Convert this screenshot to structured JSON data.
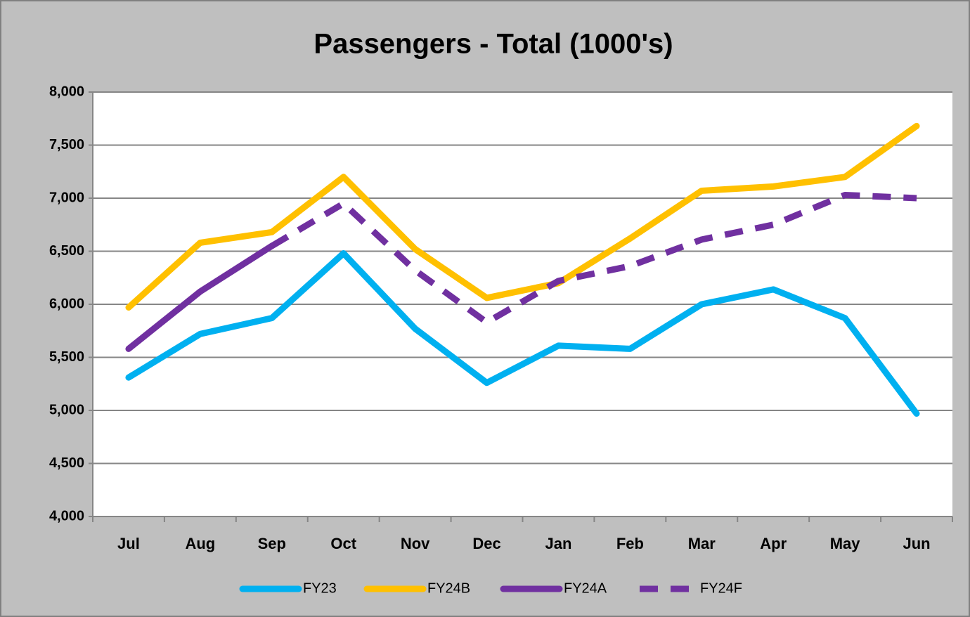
{
  "chart_data": {
    "type": "line",
    "title": "Passengers - Total (1000's)",
    "categories": [
      "Jul",
      "Aug",
      "Sep",
      "Oct",
      "Nov",
      "Dec",
      "Jan",
      "Feb",
      "Mar",
      "Apr",
      "May",
      "Jun"
    ],
    "series": [
      {
        "name": "FY23",
        "color": "#00b0f0",
        "values": [
          5310,
          5720,
          5870,
          6480,
          5770,
          5260,
          5610,
          5580,
          6000,
          6140,
          5870,
          4970
        ]
      },
      {
        "name": "FY24B",
        "color": "#ffc000",
        "values": [
          5970,
          6580,
          6680,
          7200,
          6520,
          6060,
          6200,
          6620,
          7070,
          7110,
          7200,
          7680
        ]
      },
      {
        "name": "FY24A",
        "color": "#7030a0",
        "values": [
          5580,
          6120,
          6550,
          null,
          null,
          null,
          null,
          null,
          null,
          null,
          null,
          null
        ]
      },
      {
        "name": "FY24F",
        "color": "#7030a0",
        "dashed": true,
        "values": [
          null,
          null,
          6550,
          6950,
          6320,
          5830,
          6220,
          6360,
          6610,
          6750,
          7030,
          7000
        ]
      }
    ],
    "ylim": [
      4000,
      8000
    ],
    "yticks": [
      {
        "value": 4000,
        "label": "4,000"
      },
      {
        "value": 4500,
        "label": "4,500"
      },
      {
        "value": 5000,
        "label": "5,000"
      },
      {
        "value": 5500,
        "label": "5,500"
      },
      {
        "value": 6000,
        "label": "6,000"
      },
      {
        "value": 6500,
        "label": "6,500"
      },
      {
        "value": 7000,
        "label": "7,000"
      },
      {
        "value": 7500,
        "label": "7,500"
      },
      {
        "value": 8000,
        "label": "8,000"
      }
    ],
    "grid": true,
    "legend": "bottom"
  }
}
